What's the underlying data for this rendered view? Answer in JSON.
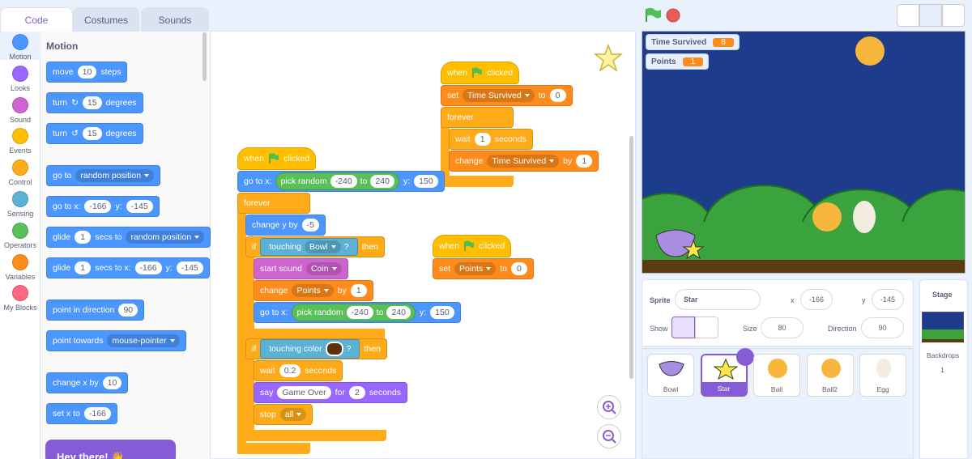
{
  "tabs": [
    "Code",
    "Costumes",
    "Sounds"
  ],
  "categories": [
    "Motion",
    "Looks",
    "Sound",
    "Events",
    "Control",
    "Sensing",
    "Operators",
    "Variables",
    "My Blocks"
  ],
  "palette": {
    "heading": "Motion",
    "blocks": [
      [
        "move",
        {
          "input": 10
        },
        "steps"
      ],
      [
        "turn",
        "↻",
        {
          "input": 15
        },
        "degrees"
      ],
      [
        "turn",
        "↺",
        {
          "input": 15
        },
        "degrees"
      ],
      [
        "go to",
        {
          "menu": "random position"
        }
      ],
      [
        "go to x:",
        {
          "input": -166
        },
        "y:",
        {
          "input": -145
        }
      ],
      [
        "glide",
        {
          "input": 1
        },
        "secs to",
        {
          "menu": "random position"
        }
      ],
      [
        "glide",
        {
          "input": 1
        },
        "secs to x:",
        {
          "input": -166
        },
        "y:",
        {
          "input": -145
        }
      ],
      [
        "point in direction",
        {
          "input": 90
        }
      ],
      [
        "point towards",
        {
          "menu": "mouse-pointer"
        }
      ],
      [
        "change x by",
        {
          "input": 10
        }
      ],
      [
        "set x to",
        {
          "input": -166
        }
      ]
    ]
  },
  "scripts": [
    {
      "blocks": [
        [
          "when",
          "clicked"
        ],
        [
          "go to x:",
          {
            "reporter": [
              "pick random",
              {
                "input": -240
              },
              "to",
              {
                "input": 240
              }
            ]
          },
          "y:",
          {
            "input": 150
          }
        ],
        [
          "forever"
        ],
        [
          "change y by",
          {
            "input": -5
          }
        ],
        [
          "if",
          {
            "bool": [
              "touching",
              {
                "menu": "Bowl"
              },
              "?"
            ]
          },
          "then"
        ],
        [
          "start sound",
          {
            "menu": "Coin"
          }
        ],
        [
          "change",
          {
            "menu": "Points"
          },
          "by",
          {
            "input": 1
          }
        ],
        [
          "go to x:",
          {
            "reporter": [
              "pick random",
              {
                "input": -240
              },
              "to",
              {
                "input": 240
              }
            ]
          },
          "y:",
          {
            "input": 150
          }
        ],
        [
          "if",
          {
            "bool": [
              "touching color",
              {
                "color": "#5b3210"
              },
              "?"
            ]
          },
          "then"
        ],
        [
          "wait",
          {
            "input": 0.2
          },
          "seconds"
        ],
        [
          "say",
          {
            "input": "Game Over"
          },
          "for",
          {
            "input": 2
          },
          "seconds"
        ],
        [
          "stop",
          {
            "menu": "all"
          }
        ]
      ]
    },
    {
      "blocks": [
        [
          "when",
          "clicked"
        ],
        [
          "set",
          {
            "menu": "Time Survived"
          },
          "to",
          {
            "input": 0
          }
        ],
        [
          "forever"
        ],
        [
          "wait",
          {
            "input": 1
          },
          "seconds"
        ],
        [
          "change",
          {
            "menu": "Time Survived"
          },
          "by",
          {
            "input": 1
          }
        ]
      ]
    },
    {
      "blocks": [
        [
          "when",
          "clicked"
        ],
        [
          "set",
          {
            "menu": "Points"
          },
          "to",
          {
            "input": 0
          }
        ]
      ]
    }
  ],
  "popup": "Hey there! 👋",
  "stage": {
    "monitors": [
      {
        "label": "Time Survived",
        "value": 8
      },
      {
        "label": "Points",
        "value": 1
      }
    ]
  },
  "sprite_info": {
    "sprite_label": "Sprite",
    "sprite_name": "Star",
    "x_label": "x",
    "x": -166,
    "y_label": "y",
    "y": -145,
    "show_label": "Show",
    "size_label": "Size",
    "size": 80,
    "direction_label": "Direction",
    "direction": 90
  },
  "sprites": [
    "Bowl",
    "Star",
    "Ball",
    "Ball2",
    "Egg"
  ],
  "stage_panel": {
    "title": "Stage",
    "backdrops_label": "Backdrops",
    "backdrops": 1
  }
}
